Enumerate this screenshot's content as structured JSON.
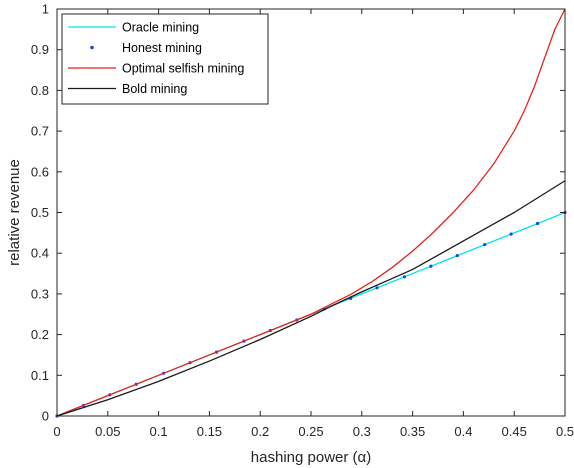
{
  "chart_data": {
    "type": "line",
    "title": "",
    "xlabel": "hashing power (α)",
    "ylabel": "relative revenue",
    "xlim": [
      0,
      0.5
    ],
    "ylim": [
      0,
      1
    ],
    "xticks": [
      0,
      0.05,
      0.1,
      0.15,
      0.2,
      0.25,
      0.3,
      0.35,
      0.4,
      0.45,
      0.5
    ],
    "xtick_labels": [
      "0",
      "0.05",
      "0.1",
      "0.15",
      "0.2",
      "0.25",
      "0.3",
      "0.35",
      "0.4",
      "0.45",
      "0.5"
    ],
    "yticks": [
      0,
      0.1,
      0.2,
      0.3,
      0.4,
      0.5,
      0.6,
      0.7,
      0.8,
      0.9,
      1
    ],
    "ytick_labels": [
      "0",
      "0.1",
      "0.2",
      "0.3",
      "0.4",
      "0.5",
      "0.6",
      "0.7",
      "0.8",
      "0.9",
      "1"
    ],
    "grid": false,
    "legend_position": "top-left",
    "series": [
      {
        "name": "Oracle mining",
        "color": "#00e5ee",
        "style": "line",
        "x": [
          0,
          0.025,
          0.05,
          0.075,
          0.1,
          0.125,
          0.15,
          0.175,
          0.2,
          0.225,
          0.25,
          0.275,
          0.3,
          0.325,
          0.35,
          0.375,
          0.4,
          0.425,
          0.45,
          0.475,
          0.5
        ],
        "y": [
          0,
          0.025,
          0.05,
          0.075,
          0.1,
          0.125,
          0.15,
          0.175,
          0.2,
          0.225,
          0.25,
          0.275,
          0.3,
          0.325,
          0.35,
          0.375,
          0.4,
          0.425,
          0.45,
          0.475,
          0.5
        ]
      },
      {
        "name": "Honest mining",
        "color": "#1f3fff",
        "style": "points",
        "x": [
          0,
          0.026,
          0.052,
          0.078,
          0.105,
          0.131,
          0.157,
          0.184,
          0.21,
          0.236,
          0.263,
          0.289,
          0.315,
          0.342,
          0.368,
          0.394,
          0.421,
          0.447,
          0.473,
          0.5
        ],
        "y": [
          0,
          0.026,
          0.052,
          0.078,
          0.105,
          0.131,
          0.157,
          0.184,
          0.21,
          0.236,
          0.263,
          0.289,
          0.315,
          0.342,
          0.368,
          0.394,
          0.421,
          0.447,
          0.473,
          0.5
        ]
      },
      {
        "name": "Optimal selfish mining",
        "color": "#e8221a",
        "style": "line",
        "x": [
          0,
          0.05,
          0.1,
          0.15,
          0.2,
          0.25,
          0.27,
          0.29,
          0.31,
          0.33,
          0.35,
          0.37,
          0.39,
          0.41,
          0.43,
          0.45,
          0.46,
          0.47,
          0.48,
          0.49,
          0.5
        ],
        "y": [
          0,
          0.05,
          0.1,
          0.15,
          0.2,
          0.25,
          0.275,
          0.3,
          0.33,
          0.365,
          0.405,
          0.45,
          0.5,
          0.555,
          0.62,
          0.7,
          0.75,
          0.81,
          0.88,
          0.95,
          1.0
        ]
      },
      {
        "name": "Bold mining",
        "color": "#1a1a1a",
        "style": "line",
        "x": [
          0,
          0.05,
          0.1,
          0.15,
          0.2,
          0.25,
          0.27,
          0.3,
          0.35,
          0.4,
          0.45,
          0.5
        ],
        "y": [
          0,
          0.04,
          0.085,
          0.135,
          0.188,
          0.245,
          0.27,
          0.305,
          0.36,
          0.43,
          0.5,
          0.578
        ]
      }
    ]
  }
}
